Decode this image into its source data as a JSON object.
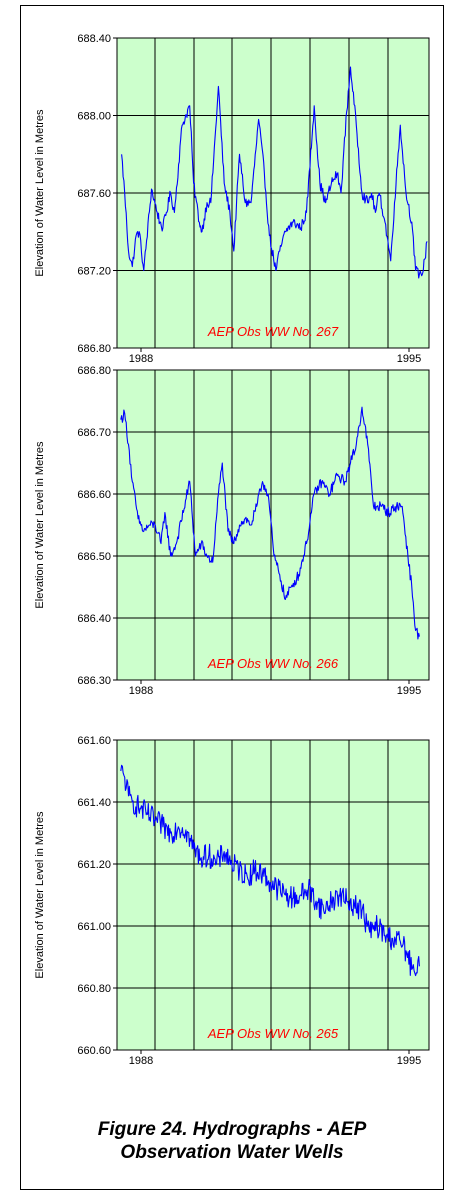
{
  "figure_caption": {
    "line1": "Figure 24. Hydrographs - AEP",
    "line2": "Observation Water Wells"
  },
  "colors": {
    "plot_background": "#ccffcc",
    "series_line": "#0000ff",
    "annotation_text": "#ff0000",
    "gridline": "#000000"
  },
  "chart_data": [
    {
      "type": "line",
      "title": "",
      "annotation": "AEP Obs WW No. 267",
      "xlabel": "",
      "ylabel": "Elevation of Water Level in Metres",
      "x_tick_labels": [
        "1988",
        "1995"
      ],
      "xlim": [
        1987.6,
        1995.75
      ],
      "ylim": [
        686.8,
        688.4
      ],
      "y_ticks": [
        "686.80",
        "687.20",
        "687.60",
        "688.00",
        "688.40"
      ],
      "grid": true,
      "series": [
        {
          "x": [
            1987.72,
            1987.8,
            1987.9,
            1988.0,
            1988.1,
            1988.18,
            1988.3,
            1988.5,
            1988.65,
            1988.72,
            1988.8,
            1989.0,
            1989.1,
            1989.3,
            1989.5,
            1989.6,
            1989.75,
            1989.82,
            1989.95,
            1990.05,
            1990.25,
            1990.4,
            1990.55,
            1990.65,
            1990.8,
            1990.95,
            1991.1,
            1991.3,
            1991.45,
            1991.58,
            1991.75,
            1991.85,
            1992.0,
            1992.2,
            1992.4,
            1992.55,
            1992.75,
            1992.9,
            1993.05,
            1993.2,
            1993.35,
            1993.45,
            1993.6,
            1993.7,
            1993.85,
            1994.0,
            1994.15,
            1994.25,
            1994.35,
            1994.45,
            1994.6,
            1994.75,
            1994.85,
            1995.0,
            1995.15,
            1995.3,
            1995.4,
            1995.5,
            1995.6,
            1995.7
          ],
          "values": [
            687.8,
            687.6,
            687.3,
            687.22,
            687.38,
            687.4,
            687.2,
            687.62,
            687.5,
            687.45,
            687.42,
            687.6,
            687.5,
            687.95,
            688.05,
            687.65,
            687.45,
            687.4,
            687.55,
            687.55,
            688.15,
            687.65,
            687.5,
            687.3,
            687.8,
            687.55,
            687.55,
            687.98,
            687.7,
            687.38,
            687.2,
            687.3,
            687.4,
            687.45,
            687.42,
            687.5,
            688.05,
            687.65,
            687.55,
            687.65,
            687.7,
            687.6,
            688.02,
            688.25,
            687.95,
            687.6,
            687.55,
            687.6,
            687.5,
            687.6,
            687.45,
            687.25,
            687.55,
            687.95,
            687.6,
            687.45,
            687.2,
            687.18,
            687.2,
            687.35
          ]
        }
      ]
    },
    {
      "type": "line",
      "title": "",
      "annotation": "AEP Obs WW No. 266",
      "xlabel": "",
      "ylabel": "Elevation of Water Level in Metres",
      "x_tick_labels": [
        "1988",
        "1995"
      ],
      "xlim": [
        1987.6,
        1995.75
      ],
      "ylim": [
        686.3,
        686.8
      ],
      "y_ticks": [
        "686.30",
        "686.40",
        "686.50",
        "686.60",
        "686.70",
        "686.80"
      ],
      "grid": true,
      "series": [
        {
          "x": [
            1987.7,
            1987.8,
            1987.9,
            1988.0,
            1988.15,
            1988.3,
            1988.45,
            1988.6,
            1988.75,
            1988.85,
            1989.0,
            1989.15,
            1989.5,
            1989.65,
            1989.8,
            1989.95,
            1990.1,
            1990.25,
            1990.35,
            1990.5,
            1990.65,
            1990.8,
            1990.95,
            1991.1,
            1991.25,
            1991.4,
            1991.55,
            1991.7,
            1991.85,
            1992.0,
            1992.15,
            1992.35,
            1992.55,
            1992.75,
            1992.95,
            1993.15,
            1993.35,
            1993.55,
            1993.7,
            1993.85,
            1994.0,
            1994.15,
            1994.3,
            1994.5,
            1994.7,
            1994.9,
            1995.05,
            1995.2,
            1995.3,
            1995.4,
            1995.5
          ],
          "values": [
            686.72,
            686.73,
            686.68,
            686.62,
            686.56,
            686.54,
            686.55,
            686.55,
            686.52,
            686.57,
            686.5,
            686.52,
            686.62,
            686.5,
            686.52,
            686.5,
            686.49,
            686.6,
            686.65,
            686.54,
            686.52,
            686.55,
            686.56,
            686.55,
            686.58,
            686.62,
            686.6,
            686.5,
            686.47,
            686.43,
            686.45,
            686.47,
            686.52,
            686.6,
            686.62,
            686.6,
            686.63,
            686.62,
            686.65,
            686.68,
            686.74,
            686.68,
            686.58,
            686.58,
            686.57,
            686.58,
            686.58,
            686.5,
            686.45,
            686.38,
            686.37
          ]
        }
      ]
    },
    {
      "type": "line",
      "title": "",
      "annotation": "AEP Obs WW No. 265",
      "xlabel": "",
      "ylabel": "Elevation of Water Level in Metres",
      "x_tick_labels": [
        "1988",
        "1995"
      ],
      "xlim": [
        1987.6,
        1995.75
      ],
      "ylim": [
        660.6,
        661.6
      ],
      "y_ticks": [
        "660.60",
        "660.80",
        "661.00",
        "661.20",
        "661.40",
        "661.60"
      ],
      "grid": true,
      "series": [
        {
          "x": [
            1987.7,
            1987.8,
            1987.9,
            1988.0,
            1988.2,
            1988.4,
            1988.6,
            1988.8,
            1989.0,
            1989.2,
            1989.4,
            1989.6,
            1989.8,
            1990.0,
            1990.2,
            1990.4,
            1990.6,
            1990.8,
            1991.0,
            1991.2,
            1991.4,
            1991.6,
            1991.8,
            1992.0,
            1992.2,
            1992.4,
            1992.6,
            1992.8,
            1993.0,
            1993.2,
            1993.4,
            1993.6,
            1993.8,
            1994.0,
            1994.2,
            1994.4,
            1994.6,
            1994.8,
            1995.0,
            1995.15,
            1995.3,
            1995.4,
            1995.5
          ],
          "values": [
            661.5,
            661.48,
            661.42,
            661.4,
            661.38,
            661.36,
            661.34,
            661.32,
            661.3,
            661.32,
            661.31,
            661.25,
            661.22,
            661.23,
            661.2,
            661.24,
            661.2,
            661.18,
            661.16,
            661.18,
            661.17,
            661.14,
            661.12,
            661.1,
            661.09,
            661.1,
            661.12,
            661.08,
            661.05,
            661.08,
            661.1,
            661.08,
            661.07,
            661.05,
            660.98,
            661.0,
            660.97,
            660.96,
            660.95,
            660.92,
            660.86,
            660.84,
            660.87
          ]
        }
      ]
    }
  ]
}
